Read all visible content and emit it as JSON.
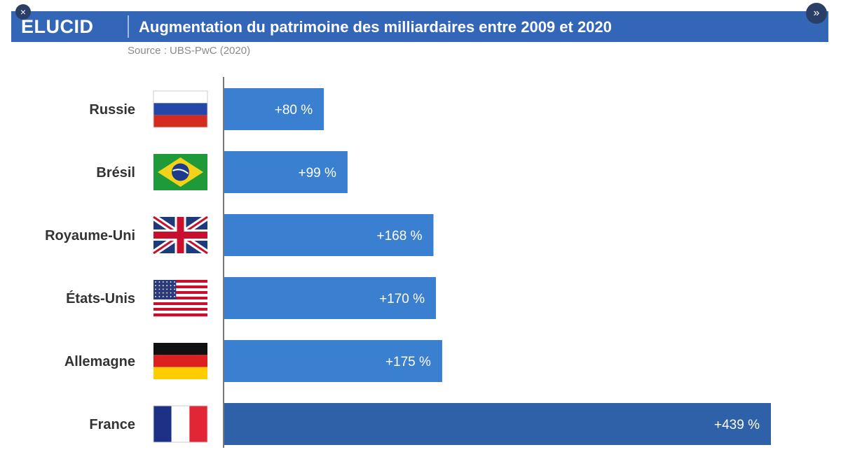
{
  "header": {
    "brand": "ELUCID",
    "title": "Augmentation du patrimoine des milliardaires entre 2009 et 2020",
    "close_glyph": "×",
    "next_glyph": "»"
  },
  "source": "Source : UBS-PwC (2020)",
  "colors": {
    "header": "#3466b8",
    "bar": "#3a7fd0",
    "bar_highlight": "#2e61a8"
  },
  "chart_data": {
    "type": "bar",
    "orientation": "horizontal",
    "title": "Augmentation du patrimoine des milliardaires entre 2009 et 2020",
    "categories": [
      "Russie",
      "Brésil",
      "Royaume-Uni",
      "États-Unis",
      "Allemagne",
      "France"
    ],
    "flags": [
      "russia-flag",
      "brazil-flag",
      "uk-flag",
      "usa-flag",
      "germany-flag",
      "france-flag"
    ],
    "values": [
      80,
      99,
      168,
      170,
      175,
      439
    ],
    "value_labels": [
      "+80 %",
      "+99 %",
      "+168 %",
      "+170 %",
      "+175 %",
      "+439 %"
    ],
    "highlight": "France",
    "xlim": [
      0,
      439
    ],
    "grid": false
  }
}
